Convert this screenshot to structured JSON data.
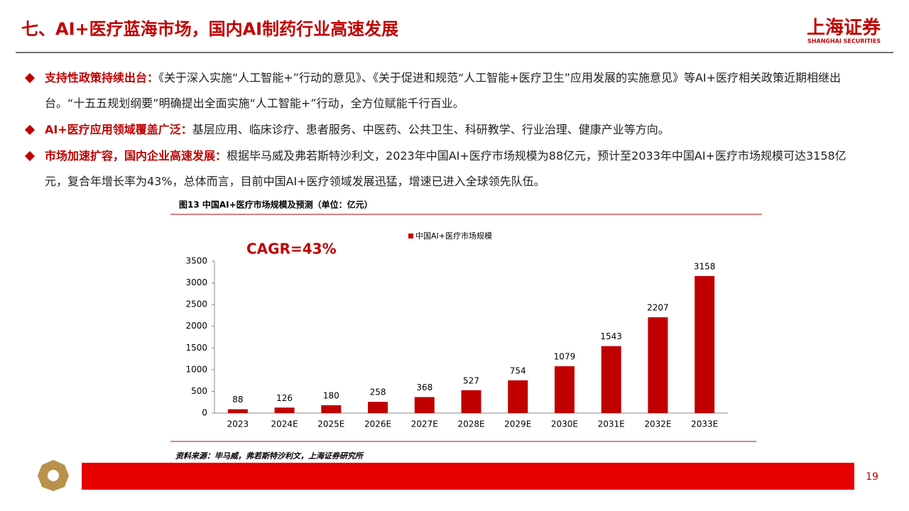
{
  "header": {
    "title": "七、AI+医疗蓝海市场，国内AI制药行业高速发展",
    "logo": "上海证券",
    "logo_en": "SHANGHAI SECURITIES"
  },
  "bullets": [
    {
      "heading": "支持性政策持续出台：",
      "text": "《关于深入实施“人工智能+”行动的意见》、《关于促进和规范“人工智能+医疗卫生”应用发展的实施意见》等AI+医疗相关政策近期相继出台。“十五五规划纲要”明确提出全面实施“人工智能+”行动，全方位赋能千行百业。"
    },
    {
      "heading": "AI+医疗应用领域覆盖广泛：",
      "text": "基层应用、临床诊疗、患者服务、中医药、公共卫生、科研教学、行业治理、健康产业等方向。"
    },
    {
      "heading": "市场加速扩容，国内企业高速发展：",
      "text": "根据毕马威及弗若斯特沙利文，2023年中国AI+医疗市场规模为88亿元，预计至2033年中国AI+医疗市场规模可达3158亿元，复合年增长率为43%，总体而言，目前中国AI+医疗领域发展迅猛，增速已进入全球领先队伍。"
    }
  ],
  "figure_caption": "图13 中国AI+医疗市场规模及预测（单位：亿元）",
  "chart_data": {
    "type": "bar",
    "annotation": "CAGR=43%",
    "categories": [
      "2023",
      "2024E",
      "2025E",
      "2026E",
      "2027E",
      "2028E",
      "2029E",
      "2030E",
      "2031E",
      "2032E",
      "2033E"
    ],
    "series": [
      {
        "name": "中国AI+医疗市场规模",
        "color": "#c00000",
        "values": [
          88,
          126,
          180,
          258,
          368,
          527,
          754,
          1079,
          1543,
          2207,
          3158
        ]
      }
    ],
    "ylim": [
      0,
      3500
    ],
    "yticks": [
      0,
      500,
      1000,
      1500,
      2000,
      2500,
      3000,
      3500
    ],
    "grid": false,
    "legend": "top"
  },
  "source": "资料来源：毕马威，弗若斯特沙利文，上海证券研究所",
  "page_number": "19"
}
